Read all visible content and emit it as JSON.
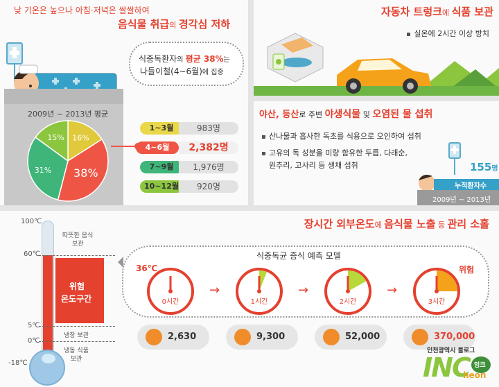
{
  "panel1": {
    "title_line1": "낮 기온은 높으나 아침·저녁은 쌀쌀하여",
    "title_line2_a": "음식물 취급",
    "title_line2_b": "의 ",
    "title_line2_c": "경각심 저하",
    "bubble_line1_a": "식중독환자",
    "bubble_line1_b": "의 ",
    "bubble_line1_c": "평균 38%",
    "bubble_line1_d": "는",
    "bubble_line2_a": "나들이철(4~6월)",
    "bubble_line2_b": "에 집중",
    "board_label": "2009년 ~ 2013년 평균",
    "pie": [
      {
        "label": "16%",
        "value": 16,
        "color": "#e0c93a"
      },
      {
        "label": "38%",
        "value": 38,
        "color": "#ef5545"
      },
      {
        "label": "31%",
        "value": 31,
        "color": "#3fb57a"
      },
      {
        "label": "15%",
        "value": 15,
        "color": "#8cc63f"
      }
    ],
    "periods": [
      {
        "label": "1~3월",
        "value": "983명",
        "pill_color": "#e8d84a",
        "text_color": "#555"
      },
      {
        "label": "4~6월",
        "value": "2,382명",
        "pill_color": "#ef5545",
        "text_color": "#e4412f"
      },
      {
        "label": "7~9월",
        "value": "1,976명",
        "pill_color": "#3fb57a",
        "text_color": "#555"
      },
      {
        "label": "10~12월",
        "value": "920명",
        "pill_color": "#8cc63f",
        "text_color": "#555"
      }
    ]
  },
  "panel2": {
    "title_a": "자동차 트렁크",
    "title_b": "에 ",
    "title_c": "식품 보관",
    "bullet": "실온에 2시간 이상 방치"
  },
  "panel3": {
    "title_a": "야산, 등산",
    "title_b": "로 주변 ",
    "title_c": "야생식물",
    "title_d": " 및 ",
    "title_e": "오염된 물 섭취",
    "bullet1": "산나물과 흡사한 독초를 식용으로 오인하여 섭취",
    "bullet2_line1": "고유의 독 성분을 미량 함유한 두릅, 다래순,",
    "bullet2_line2": "원추리, 고사리 등 생채 섭취",
    "count": "155",
    "count_unit": "명",
    "count_label": "누적환자수",
    "period": "2009년 ~ 2013년"
  },
  "panel4": {
    "title_a": "장시간 외부온도",
    "title_b": "에 ",
    "title_c": "음식물 노출",
    "title_d": " 등 ",
    "title_e": "관리 소홀",
    "thermo_ticks": [
      "100℃",
      "60℃",
      "5℃",
      "0℃",
      "-18℃"
    ],
    "zone_hot": "따뜻한 음식\n보관",
    "zone_danger_line1": "위험",
    "zone_danger_line2": "온도구간",
    "zone_cold": "냉장 보관",
    "zone_frozen": "냉동 식품\n보관",
    "model_title": "식중독균 증식 예측 모델",
    "temp_label": "36℃",
    "danger_label": "위험",
    "clocks": [
      {
        "label": "0시간",
        "count": "2,630",
        "fraction": 0.0
      },
      {
        "label": "1시간",
        "count": "9,300",
        "fraction": 0.06
      },
      {
        "label": "2시간",
        "count": "52,000",
        "fraction": 0.17
      },
      {
        "label": "3시간",
        "count": "370,000",
        "fraction": 0.25
      }
    ],
    "logo_top": "인천광역시 블로그",
    "logo_main": "INC",
    "logo_sub": "heon",
    "logo_badge": "잉크"
  }
}
